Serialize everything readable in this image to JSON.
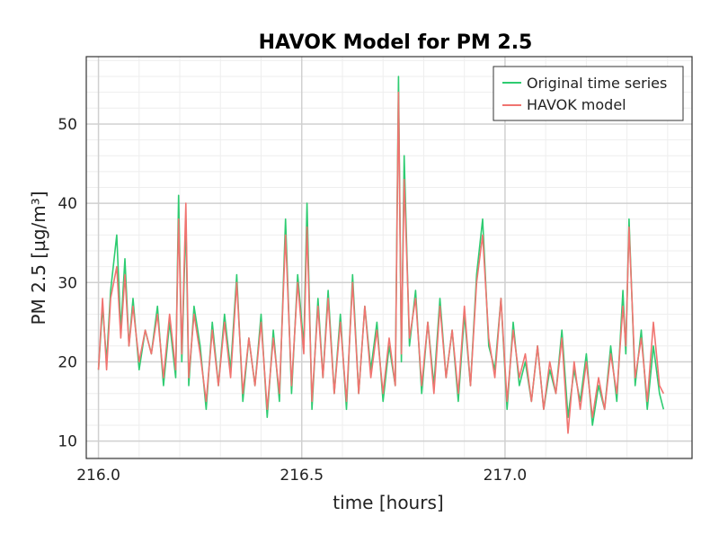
{
  "chart_data": {
    "type": "line",
    "title": "HAVOK Model for PM 2.5",
    "xlabel": "time [hours]",
    "ylabel": "PM 2.5 [µg/m³]",
    "xlim": [
      215.97,
      217.46
    ],
    "ylim": [
      7.8,
      58.5
    ],
    "x_ticks": [
      216.0,
      216.5,
      217.0
    ],
    "x_tick_labels": [
      "216.0",
      "216.5",
      "217.0"
    ],
    "y_ticks": [
      10,
      20,
      30,
      40,
      50
    ],
    "y_tick_labels": [
      "10",
      "20",
      "30",
      "40",
      "50"
    ],
    "grid": true,
    "legend_position": "top-right",
    "series": [
      {
        "name": "Original time series",
        "color": "#2ecc71",
        "x": [
          216.0,
          216.01,
          216.02,
          216.03,
          216.045,
          216.055,
          216.065,
          216.075,
          216.085,
          216.1,
          216.115,
          216.13,
          216.145,
          216.16,
          216.175,
          216.19,
          216.197,
          216.205,
          216.215,
          216.222,
          216.235,
          216.25,
          216.265,
          216.28,
          216.295,
          216.31,
          216.325,
          216.34,
          216.355,
          216.37,
          216.385,
          216.4,
          216.415,
          216.43,
          216.445,
          216.46,
          216.475,
          216.49,
          216.505,
          216.513,
          216.525,
          216.54,
          216.552,
          216.565,
          216.58,
          216.595,
          216.61,
          216.625,
          216.64,
          216.655,
          216.67,
          216.685,
          216.7,
          216.715,
          216.73,
          216.738,
          216.745,
          216.752,
          216.765,
          216.78,
          216.795,
          216.81,
          216.825,
          216.84,
          216.855,
          216.87,
          216.885,
          216.9,
          216.915,
          216.93,
          216.945,
          216.96,
          216.975,
          216.99,
          217.005,
          217.02,
          217.035,
          217.05,
          217.065,
          217.08,
          217.095,
          217.11,
          217.125,
          217.14,
          217.155,
          217.17,
          217.185,
          217.2,
          217.215,
          217.23,
          217.245,
          217.26,
          217.275,
          217.29,
          217.297,
          217.305,
          217.32,
          217.335,
          217.35,
          217.365,
          217.38,
          217.39
        ],
        "y": [
          19,
          27,
          20,
          29,
          36,
          24,
          33,
          22,
          28,
          19,
          24,
          21,
          27,
          17,
          25,
          18,
          41,
          20,
          38,
          17,
          27,
          22,
          14,
          25,
          17,
          26,
          19,
          31,
          15,
          23,
          17,
          26,
          13,
          24,
          15,
          38,
          16,
          31,
          22,
          40,
          14,
          28,
          18,
          29,
          16,
          26,
          14,
          31,
          16,
          27,
          19,
          25,
          15,
          22,
          17,
          56,
          20,
          46,
          22,
          29,
          16,
          25,
          17,
          28,
          18,
          24,
          15,
          26,
          17,
          31,
          38,
          22,
          19,
          28,
          14,
          25,
          17,
          20,
          15,
          22,
          14,
          19,
          16,
          24,
          13,
          19,
          15,
          21,
          12,
          17,
          14,
          22,
          15,
          29,
          21,
          38,
          17,
          24,
          14,
          22,
          16,
          14
        ]
      },
      {
        "name": "HAVOK model",
        "color": "#f07470",
        "x": [
          216.0,
          216.01,
          216.02,
          216.03,
          216.045,
          216.055,
          216.065,
          216.075,
          216.085,
          216.1,
          216.115,
          216.13,
          216.145,
          216.16,
          216.175,
          216.19,
          216.197,
          216.205,
          216.215,
          216.222,
          216.235,
          216.25,
          216.265,
          216.28,
          216.295,
          216.31,
          216.325,
          216.34,
          216.355,
          216.37,
          216.385,
          216.4,
          216.415,
          216.43,
          216.445,
          216.46,
          216.475,
          216.49,
          216.505,
          216.513,
          216.525,
          216.54,
          216.552,
          216.565,
          216.58,
          216.595,
          216.61,
          216.625,
          216.64,
          216.655,
          216.67,
          216.685,
          216.7,
          216.715,
          216.73,
          216.738,
          216.745,
          216.752,
          216.765,
          216.78,
          216.795,
          216.81,
          216.825,
          216.84,
          216.855,
          216.87,
          216.885,
          216.9,
          216.915,
          216.93,
          216.945,
          216.96,
          216.975,
          216.99,
          217.005,
          217.02,
          217.035,
          217.05,
          217.065,
          217.08,
          217.095,
          217.11,
          217.125,
          217.14,
          217.155,
          217.17,
          217.185,
          217.2,
          217.215,
          217.23,
          217.245,
          217.26,
          217.275,
          217.29,
          217.297,
          217.305,
          217.32,
          217.335,
          217.35,
          217.365,
          217.38,
          217.39
        ],
        "y": [
          19,
          28,
          19,
          28,
          32,
          23,
          31,
          22,
          27,
          20,
          24,
          21,
          26,
          18,
          26,
          19,
          38,
          21,
          40,
          18,
          26,
          21,
          15,
          24,
          17,
          25,
          18,
          30,
          16,
          23,
          17,
          25,
          14,
          23,
          16,
          36,
          17,
          30,
          21,
          37,
          15,
          27,
          18,
          28,
          16,
          25,
          15,
          30,
          16,
          27,
          18,
          24,
          16,
          23,
          17,
          54,
          21,
          43,
          23,
          28,
          17,
          25,
          16,
          27,
          18,
          24,
          16,
          27,
          17,
          30,
          36,
          23,
          18,
          28,
          15,
          24,
          18,
          21,
          15,
          22,
          14,
          20,
          16,
          23,
          11,
          20,
          14,
          20,
          13,
          18,
          14,
          21,
          16,
          27,
          22,
          37,
          18,
          23,
          15,
          25,
          17,
          16
        ]
      }
    ]
  }
}
